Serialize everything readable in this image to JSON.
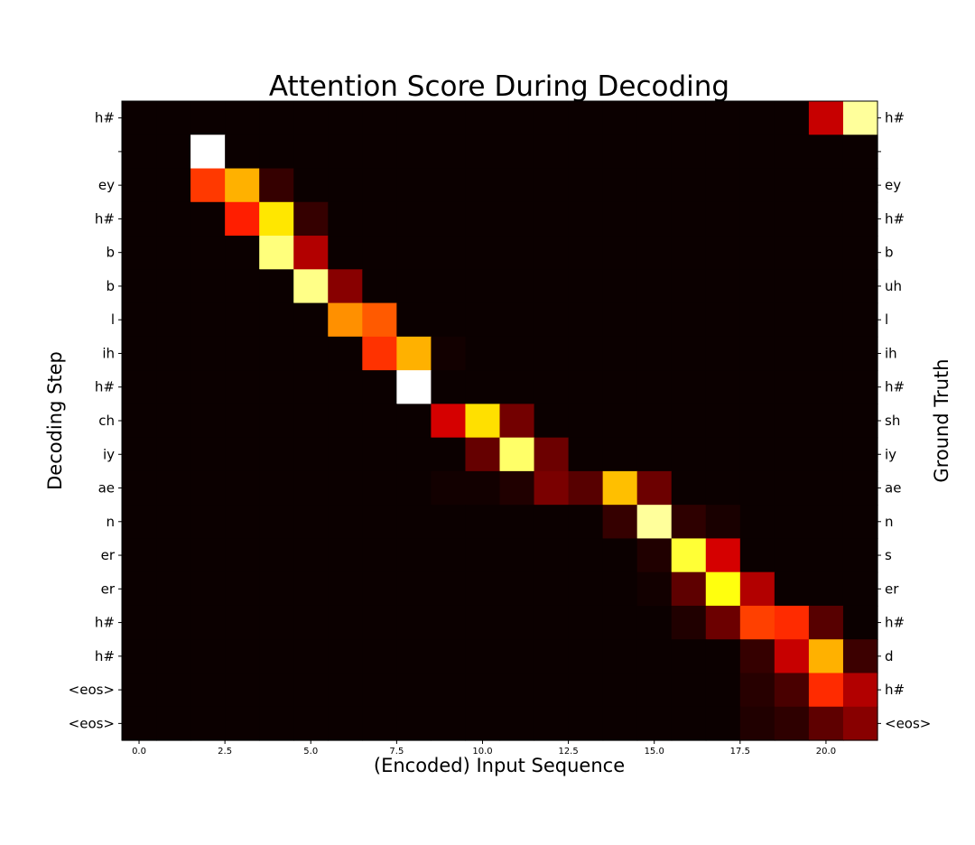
{
  "chart_data": {
    "type": "heatmap",
    "title": "Attention Score During Decoding",
    "xlabel": "(Encoded) Input Sequence",
    "ylabel": "Decoding Step",
    "ylabel_right": "Ground Truth",
    "colormap": "hot",
    "xlim": [
      -0.5,
      21.5
    ],
    "x_ticks": [
      "0.0",
      "2.5",
      "5.0",
      "7.5",
      "10.0",
      "12.5",
      "15.0",
      "17.5",
      "20.0"
    ],
    "x_tick_values": [
      0,
      2.5,
      5,
      7.5,
      10,
      12.5,
      15,
      17.5,
      20
    ],
    "n_cols": 22,
    "decoding_steps": [
      "h#",
      "",
      "ey",
      "h#",
      "b",
      "b",
      "l",
      "ih",
      "h#",
      "ch",
      "iy",
      "ae",
      "n",
      "er",
      "er",
      "h#",
      "h#",
      "<eos>",
      "<eos>"
    ],
    "ground_truth": [
      "h#",
      "",
      "ey",
      "h#",
      "b",
      "uh",
      "l",
      "ih",
      "h#",
      "sh",
      "iy",
      "ae",
      "n",
      "s",
      "er",
      "h#",
      "d",
      "h#",
      "<eos>"
    ],
    "values": [
      [
        0,
        0,
        0,
        0,
        0,
        0,
        0,
        0,
        0,
        0,
        0,
        0,
        0,
        0,
        0,
        0,
        0,
        0,
        0,
        0,
        0.27,
        0.9
      ],
      [
        0,
        0,
        1.0,
        0,
        0,
        0,
        0,
        0,
        0,
        0,
        0,
        0,
        0,
        0,
        0,
        0,
        0,
        0,
        0,
        0,
        0,
        0
      ],
      [
        0,
        0,
        0.45,
        0.63,
        0.06,
        0,
        0,
        0,
        0,
        0,
        0,
        0,
        0,
        0,
        0,
        0,
        0,
        0,
        0,
        0,
        0,
        0
      ],
      [
        0,
        0,
        0,
        0.41,
        0.71,
        0.06,
        0,
        0,
        0,
        0,
        0,
        0,
        0,
        0,
        0,
        0,
        0,
        0,
        0,
        0,
        0,
        0
      ],
      [
        0,
        0,
        0,
        0,
        0.87,
        0.24,
        0,
        0,
        0,
        0,
        0,
        0,
        0,
        0,
        0,
        0,
        0,
        0,
        0,
        0,
        0,
        0
      ],
      [
        0,
        0,
        0,
        0,
        0,
        0.88,
        0.18,
        0,
        0,
        0,
        0,
        0,
        0,
        0,
        0,
        0,
        0,
        0,
        0,
        0,
        0,
        0
      ],
      [
        0,
        0,
        0,
        0,
        0,
        0,
        0.58,
        0.5,
        0,
        0,
        0,
        0,
        0,
        0,
        0,
        0,
        0,
        0,
        0,
        0,
        0,
        0
      ],
      [
        0,
        0,
        0,
        0,
        0,
        0,
        0,
        0.44,
        0.63,
        0.01,
        0,
        0,
        0,
        0,
        0,
        0,
        0,
        0,
        0,
        0,
        0,
        0
      ],
      [
        0,
        0,
        0,
        0,
        0,
        0,
        0,
        0,
        1.0,
        0,
        0,
        0,
        0,
        0,
        0,
        0,
        0,
        0,
        0,
        0,
        0,
        0
      ],
      [
        0,
        0,
        0,
        0,
        0,
        0,
        0,
        0,
        0,
        0.29,
        0.7,
        0.15,
        0,
        0,
        0,
        0,
        0,
        0,
        0,
        0,
        0,
        0
      ],
      [
        0,
        0,
        0,
        0,
        0,
        0,
        0,
        0,
        0,
        0,
        0.13,
        0.85,
        0.14,
        0,
        0,
        0,
        0,
        0,
        0,
        0,
        0,
        0
      ],
      [
        0,
        0,
        0,
        0,
        0,
        0,
        0,
        0,
        0,
        0.01,
        0.01,
        0.03,
        0.16,
        0.11,
        0.65,
        0.14,
        0,
        0,
        0,
        0,
        0,
        0
      ],
      [
        0,
        0,
        0,
        0,
        0,
        0,
        0,
        0,
        0,
        0,
        0,
        0,
        0,
        0,
        0.06,
        0.9,
        0.05,
        0.02,
        0,
        0,
        0,
        0
      ],
      [
        0,
        0,
        0,
        0,
        0,
        0,
        0,
        0,
        0,
        0,
        0,
        0,
        0,
        0,
        0,
        0.03,
        0.8,
        0.29,
        0,
        0,
        0,
        0
      ],
      [
        0,
        0,
        0,
        0,
        0,
        0,
        0,
        0,
        0,
        0,
        0,
        0,
        0,
        0,
        0,
        0.01,
        0.12,
        0.76,
        0.24,
        0,
        0,
        0
      ],
      [
        0,
        0,
        0,
        0,
        0,
        0,
        0,
        0,
        0,
        0,
        0,
        0,
        0,
        0,
        0,
        0,
        0.03,
        0.14,
        0.46,
        0.43,
        0.11,
        0
      ],
      [
        0,
        0,
        0,
        0,
        0,
        0,
        0,
        0,
        0,
        0,
        0,
        0,
        0,
        0,
        0,
        0,
        0,
        0,
        0.06,
        0.27,
        0.63,
        0.07
      ],
      [
        0,
        0,
        0,
        0,
        0,
        0,
        0,
        0,
        0,
        0,
        0,
        0,
        0,
        0,
        0,
        0,
        0,
        0,
        0.04,
        0.09,
        0.43,
        0.24
      ],
      [
        0,
        0,
        0,
        0,
        0,
        0,
        0,
        0,
        0,
        0,
        0,
        0,
        0,
        0,
        0,
        0,
        0,
        0,
        0.03,
        0.05,
        0.12,
        0.18
      ]
    ]
  }
}
